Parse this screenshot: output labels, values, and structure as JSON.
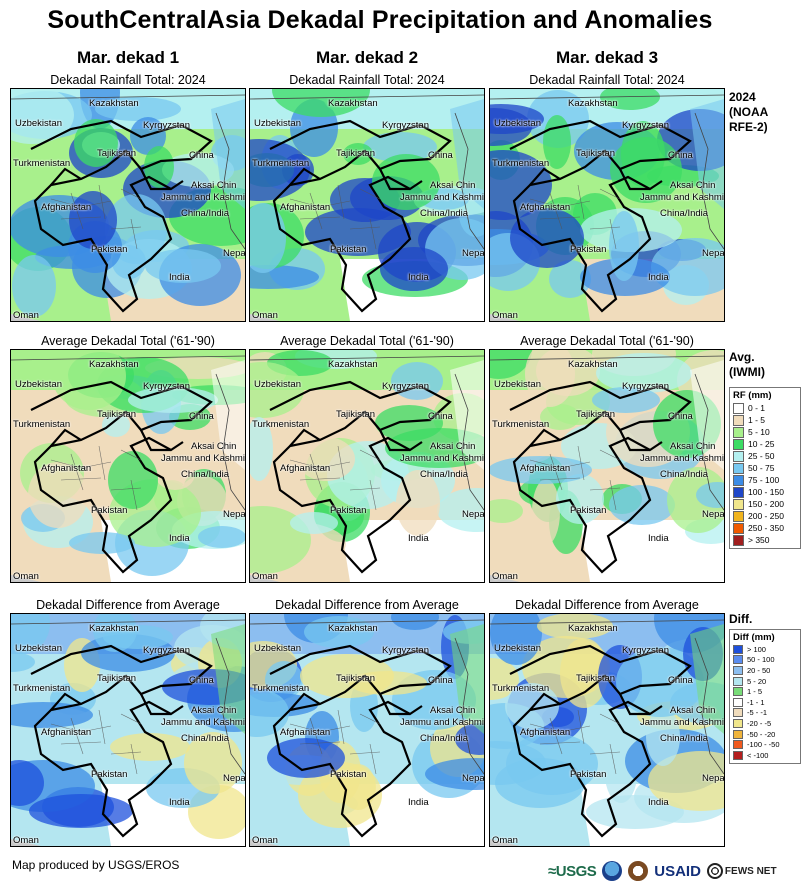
{
  "title": "SouthCentralAsia Dekadal Precipitation and Anomalies",
  "columns": [
    "Mar. dekad 1",
    "Mar. dekad 2",
    "Mar. dekad 3"
  ],
  "rows": [
    {
      "panel_title": "Dekadal Rainfall Total: 2024",
      "label_lines": [
        "2024",
        "(NOAA",
        "RFE-2)"
      ]
    },
    {
      "panel_title": "Average Dekadal Total ('61-'90)",
      "label_lines": [
        "Avg.",
        "(IWMI)"
      ]
    },
    {
      "panel_title": "Dekadal Difference from Average",
      "label_lines": [
        "Diff."
      ]
    }
  ],
  "places": {
    "kazakhstan": "Kazakhstan",
    "uzbekistan": "Uzbekistan",
    "kyrgyzstan": "Kyrgyzstan",
    "turkmenistan": "Turkmenistan",
    "tajikistan": "Tajikistan",
    "china": "China",
    "aksai_chin": "Aksai Chin",
    "jammu": "Jammu and Kashmir",
    "afghanistan": "Afghanistan",
    "china_india": "China/India",
    "pakistan": "Pakistan",
    "nepal": "Nepal",
    "india": "India",
    "oman": "Oman"
  },
  "rf_legend": {
    "title": "RF (mm)",
    "items": [
      {
        "label": "0 - 1",
        "color": "#ffffff"
      },
      {
        "label": "1 - 5",
        "color": "#f0dcbc"
      },
      {
        "label": "5 - 10",
        "color": "#a8f08c"
      },
      {
        "label": "10 - 25",
        "color": "#3cdc64"
      },
      {
        "label": "25 - 50",
        "color": "#b4f0f0"
      },
      {
        "label": "50 - 75",
        "color": "#78c8f0"
      },
      {
        "label": "75 - 100",
        "color": "#3c8ce6"
      },
      {
        "label": "100 - 150",
        "color": "#1e46c8"
      },
      {
        "label": "150 - 200",
        "color": "#f0e68c"
      },
      {
        "label": "200 - 250",
        "color": "#f0b41e"
      },
      {
        "label": "250 - 350",
        "color": "#f05a00"
      },
      {
        "label": "> 350",
        "color": "#a01e1e"
      }
    ]
  },
  "diff_legend": {
    "title": "Diff (mm)",
    "items": [
      {
        "label": "> 100",
        "color": "#1e50dc"
      },
      {
        "label": "50 - 100",
        "color": "#5a8cf0"
      },
      {
        "label": "20 - 50",
        "color": "#8cbef0"
      },
      {
        "label": "5 - 20",
        "color": "#b4e6f0"
      },
      {
        "label": "1 - 5",
        "color": "#78dc78"
      },
      {
        "label": "-1 - 1",
        "color": "#ffffff"
      },
      {
        "label": "-5 - -1",
        "color": "#f0dcbc"
      },
      {
        "label": "-20 - -5",
        "color": "#f0e68c"
      },
      {
        "label": "-50 - -20",
        "color": "#f0b43c"
      },
      {
        "label": "-100 - -50",
        "color": "#f05a1e"
      },
      {
        "label": "< -100",
        "color": "#b41e1e"
      }
    ]
  },
  "footer": "Map produced by USGS/EROS",
  "logos": {
    "usgs": "≈USGS",
    "usaid": "USAID",
    "fews": "FEWS NET"
  }
}
